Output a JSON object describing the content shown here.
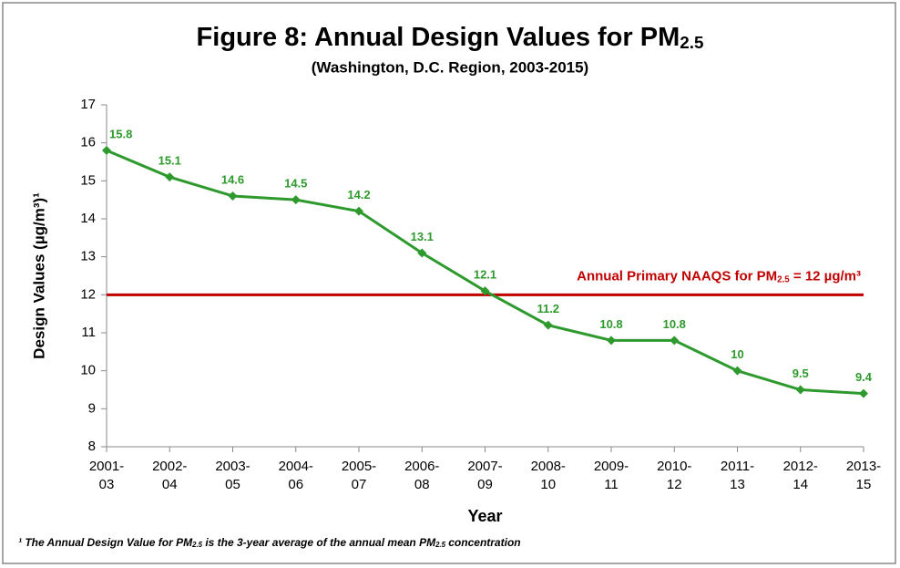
{
  "chart_data": {
    "type": "line",
    "title": [
      "Figure 8: Annual Design Values for PM",
      "2.5"
    ],
    "subtitle": "(Washington, D.C. Region, 2003-2015)",
    "y_label": "Design Values (µg/m³)¹",
    "x_label": "Year",
    "categories": [
      [
        "2001-",
        "03"
      ],
      [
        "2002-",
        "04"
      ],
      [
        "2003-",
        "05"
      ],
      [
        "2004-",
        "06"
      ],
      [
        "2005-",
        "07"
      ],
      [
        "2006-",
        "08"
      ],
      [
        "2007-",
        "09"
      ],
      [
        "2008-",
        "10"
      ],
      [
        "2009-",
        "11"
      ],
      [
        "2010-",
        "12"
      ],
      [
        "2011-",
        "13"
      ],
      [
        "2012-",
        "14"
      ],
      [
        "2013-",
        "15"
      ]
    ],
    "values": [
      15.8,
      15.1,
      14.6,
      14.5,
      14.2,
      13.1,
      12.1,
      11.2,
      10.8,
      10.8,
      10,
      9.5,
      9.4
    ],
    "color": "#2e9a2e",
    "ylim": [
      8,
      17
    ],
    "yticks": [
      8,
      9,
      10,
      11,
      12,
      13,
      14,
      15,
      16,
      17
    ],
    "grid": false,
    "reference_line": {
      "value": 12,
      "color": "#c00000",
      "label": [
        "Annual Primary NAAQS for PM",
        "2.5",
        " = 12 µg/m³"
      ]
    },
    "footnote": [
      "¹ The Annual Design Value for PM",
      "2.5",
      " is the 3-year average of the annual mean PM",
      "2.5",
      " concentration"
    ]
  }
}
